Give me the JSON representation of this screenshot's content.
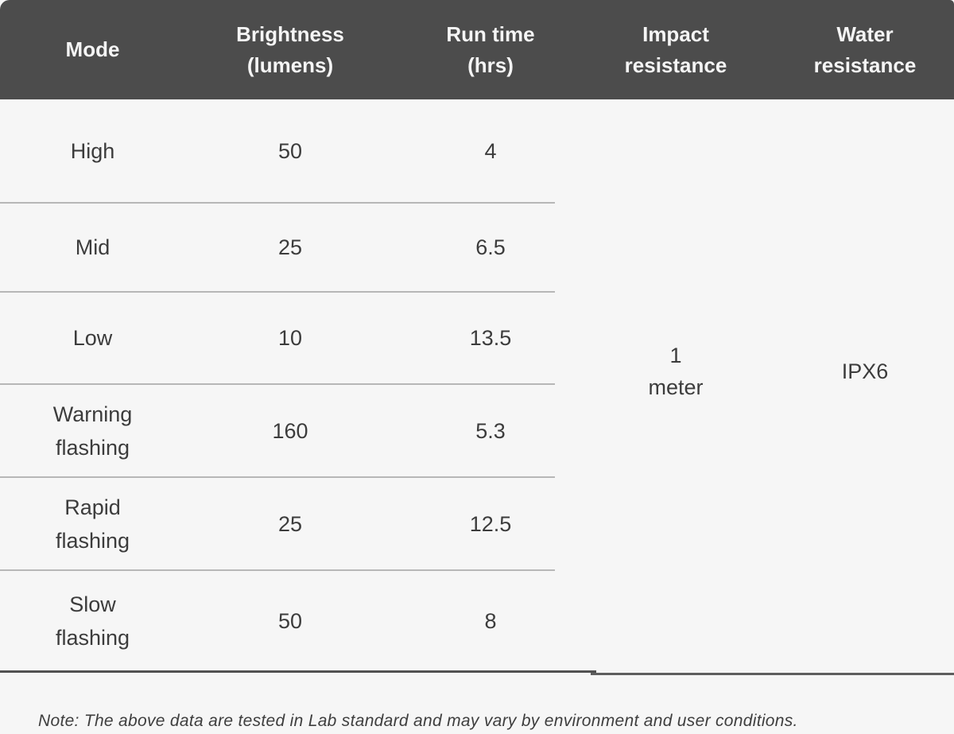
{
  "colors": {
    "header_bg": "#4c4c4c",
    "header_text": "#f5f5f5",
    "body_bg": "#f6f6f6",
    "divider": "#b7b7b7",
    "bottom_border": "#515151",
    "cell_text": "#3c3c3c"
  },
  "table": {
    "columns": [
      {
        "label": "Mode"
      },
      {
        "label": "Brightness\n(lumens)"
      },
      {
        "label": "Run time\n(hrs)"
      },
      {
        "label": "Impact\nresistance"
      },
      {
        "label": "Water\nresistance"
      }
    ],
    "rows": [
      {
        "mode": "High",
        "brightness": "50",
        "runtime": "4"
      },
      {
        "mode": "Mid",
        "brightness": "25",
        "runtime": "6.5"
      },
      {
        "mode": "Low",
        "brightness": "10",
        "runtime": "13.5"
      },
      {
        "mode": "Warning\nflashing",
        "brightness": "160",
        "runtime": "5.3"
      },
      {
        "mode": "Rapid\nflashing",
        "brightness": "25",
        "runtime": "12.5"
      },
      {
        "mode": "Slow\nflashing",
        "brightness": "50",
        "runtime": "8"
      }
    ],
    "merged": {
      "impact_resistance": "1\nmeter",
      "water_resistance": "IPX6"
    }
  },
  "note": "Note: The above data are tested in Lab standard and may vary by environment and user conditions.",
  "chart_data": {
    "type": "table",
    "title": "",
    "columns": [
      "Mode",
      "Brightness (lumens)",
      "Run time (hrs)",
      "Impact resistance",
      "Water resistance"
    ],
    "rows": [
      [
        "High",
        50,
        4
      ],
      [
        "Mid",
        25,
        6.5
      ],
      [
        "Low",
        10,
        13.5
      ],
      [
        "Warning flashing",
        160,
        5.3
      ],
      [
        "Rapid flashing",
        25,
        12.5
      ],
      [
        "Slow flashing",
        50,
        8
      ]
    ],
    "merged_cells": {
      "Impact resistance": "1 meter",
      "Water resistance": "IPX6"
    },
    "note": "Note: The above data are tested in Lab standard and may vary by environment and user conditions."
  }
}
